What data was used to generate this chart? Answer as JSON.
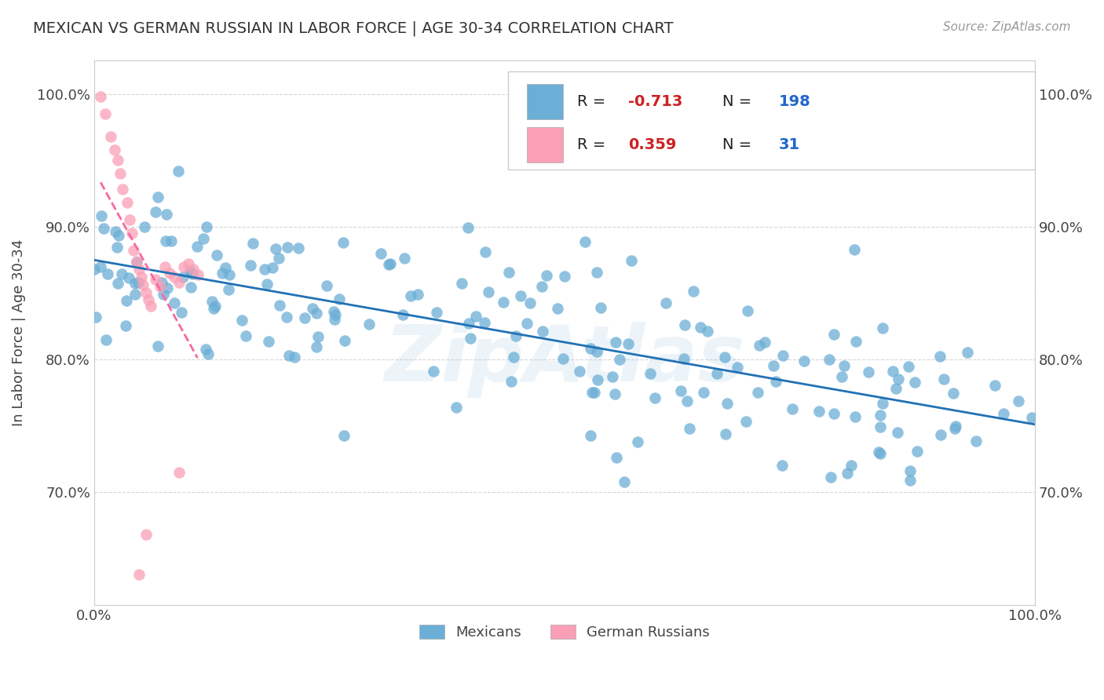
{
  "title": "MEXICAN VS GERMAN RUSSIAN IN LABOR FORCE | AGE 30-34 CORRELATION CHART",
  "source": "Source: ZipAtlas.com",
  "ylabel": "In Labor Force | Age 30-34",
  "xlim": [
    0.0,
    1.0
  ],
  "ylim": [
    0.615,
    1.025
  ],
  "yticks": [
    0.7,
    0.8,
    0.9,
    1.0
  ],
  "ytick_labels": [
    "70.0%",
    "80.0%",
    "90.0%",
    "100.0%"
  ],
  "xticks": [
    0.0,
    1.0
  ],
  "xtick_labels": [
    "0.0%",
    "100.0%"
  ],
  "blue_R": "-0.713",
  "blue_N": "198",
  "pink_R": "0.359",
  "pink_N": "31",
  "blue_color": "#6baed6",
  "pink_color": "#fa9fb5",
  "blue_line_color": "#2171b5",
  "pink_line_color": "#f768a1",
  "background_color": "#ffffff",
  "grid_color": "#cccccc",
  "watermark": "ZipAtlas"
}
